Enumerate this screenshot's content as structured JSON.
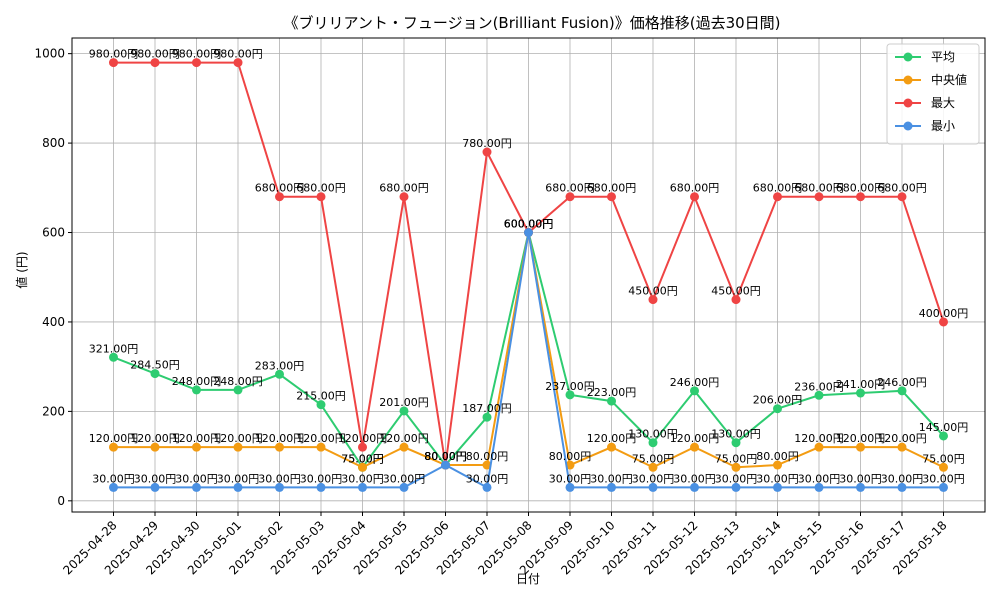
{
  "chart_data": {
    "type": "line",
    "title": "《ブリリアント・フュージョン(Brilliant Fusion)》価格推移(過去30日間)",
    "xlabel": "日付",
    "ylabel": "値 (円)",
    "ylim": [
      -25,
      1035
    ],
    "yticks": [
      0,
      200,
      400,
      600,
      800,
      1000
    ],
    "grid": true,
    "legend_position": "top-right",
    "value_suffix": "円",
    "categories": [
      "2025-04-28",
      "2025-04-29",
      "2025-04-30",
      "2025-05-01",
      "2025-05-02",
      "2025-05-03",
      "2025-05-04",
      "2025-05-05",
      "2025-05-06",
      "2025-05-07",
      "2025-05-08",
      "2025-05-09",
      "2025-05-10",
      "2025-05-11",
      "2025-05-12",
      "2025-05-13",
      "2025-05-14",
      "2025-05-15",
      "2025-05-16",
      "2025-05-17",
      "2025-05-18"
    ],
    "series": [
      {
        "name": "平均",
        "color": "#2ecc71",
        "values": [
          321,
          284.5,
          248,
          248,
          283,
          215,
          75,
          201,
          80,
          187,
          600,
          237,
          223,
          130,
          246,
          130,
          206,
          236,
          241,
          246,
          145
        ]
      },
      {
        "name": "中央値",
        "color": "#f39c12",
        "values": [
          120,
          120,
          120,
          120,
          120,
          120,
          75,
          120,
          80,
          80,
          600,
          80,
          120,
          75,
          120,
          75,
          80,
          120,
          120,
          120,
          75
        ]
      },
      {
        "name": "最大",
        "color": "#ef4444",
        "values": [
          980,
          980,
          980,
          980,
          680,
          680,
          120,
          680,
          80,
          780,
          600,
          680,
          680,
          450,
          680,
          450,
          680,
          680,
          680,
          680,
          400
        ]
      },
      {
        "name": "最小",
        "color": "#4a90e2",
        "values": [
          30,
          30,
          30,
          30,
          30,
          30,
          30,
          30,
          80,
          30,
          600,
          30,
          30,
          30,
          30,
          30,
          30,
          30,
          30,
          30,
          30
        ]
      }
    ]
  }
}
